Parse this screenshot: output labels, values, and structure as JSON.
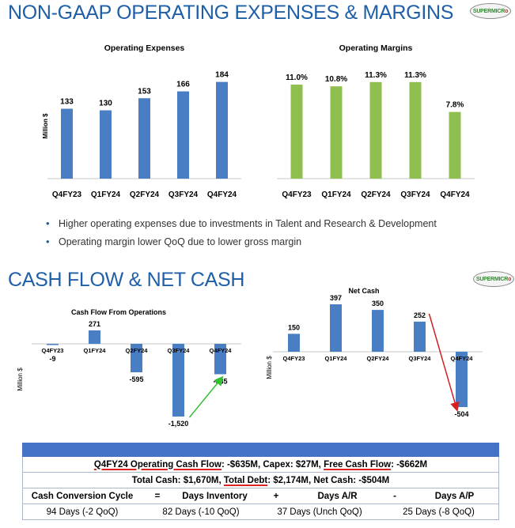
{
  "top": {
    "title": "NON-GAAP OPERATING EXPENSES & MARGINS",
    "logo": "SUPERMICR",
    "logo_dot": "o"
  },
  "bottom": {
    "title": "CASH FLOW & NET CASH",
    "logo": "SUPERMICR",
    "logo_dot": "o"
  },
  "bullets": [
    "Higher operating expenses due to investments in Talent and Research & Development",
    "Operating margin lower QoQ due to lower gross margin"
  ],
  "colors": {
    "blue": "#4a7ec4",
    "green": "#8fbf4e",
    "title": "#1f5fa8",
    "red_arrow": "#d42020",
    "green_arrow": "#34c034"
  },
  "chart_data": [
    {
      "type": "bar",
      "title": "Operating Expenses",
      "ylabel": "Million $",
      "categories": [
        "Q4FY23",
        "Q1FY24",
        "Q2FY24",
        "Q3FY24",
        "Q4FY24"
      ],
      "values": [
        133,
        130,
        153,
        166,
        184
      ],
      "labels": [
        "133",
        "130",
        "153",
        "166",
        "184"
      ],
      "ylim": [
        0,
        200
      ]
    },
    {
      "type": "bar",
      "title": "Operating Margins",
      "categories": [
        "Q4FY23",
        "Q1FY24",
        "Q2FY24",
        "Q3FY24",
        "Q4FY24"
      ],
      "values": [
        11.0,
        10.8,
        11.3,
        11.3,
        7.8
      ],
      "labels": [
        "11.0%",
        "10.8%",
        "11.3%",
        "11.3%",
        "7.8%"
      ],
      "ylim": [
        0,
        12.3
      ]
    },
    {
      "type": "bar",
      "title": "Cash Flow From Operations",
      "ylabel": "Million $",
      "categories": [
        "Q4FY23",
        "Q1FY24",
        "Q2FY24",
        "Q3FY24",
        "Q4FY24"
      ],
      "values": [
        -9,
        271,
        -595,
        -1520,
        -635
      ],
      "labels": [
        "-9",
        "271",
        "-595",
        "-1,520",
        "-635"
      ],
      "ylim": [
        -1520,
        271
      ],
      "annotation": "green arrow from Q3FY24 to Q4FY24"
    },
    {
      "type": "bar",
      "title": "Net Cash",
      "ylabel": "Million $",
      "categories": [
        "Q4FY23",
        "Q1FY24",
        "Q2FY24",
        "Q3FY24",
        "Q4FY24"
      ],
      "values": [
        150,
        397,
        350,
        252,
        -504
      ],
      "labels": [
        "150",
        "397",
        "350",
        "252",
        "-504"
      ],
      "ylim": [
        -504,
        397
      ],
      "annotation": "red arrow from Q3FY24 to Q4FY24"
    }
  ],
  "summary": {
    "row1": {
      "part1": "Q4FY24 Operating Cash Flow",
      "part2": ": -$635M, Capex: $27M, ",
      "part3": "Free Cash Flow",
      "part4": ": -$662M"
    },
    "row2": {
      "part1": "Total Cash: $1,670M, ",
      "part2": "Total Debt",
      "part3": ": $2,174M, Net Cash: -$504M"
    },
    "ccc_header": [
      "Cash Conversion Cycle",
      "=",
      "Days Inventory",
      "+",
      "Days A/R",
      "-",
      "Days A/P"
    ],
    "ccc_values": [
      "94 Days (-2 QoQ)",
      "82 Days (-10 QoQ)",
      "37 Days (Unch QoQ)",
      "25 Days (-8 QoQ)"
    ]
  }
}
